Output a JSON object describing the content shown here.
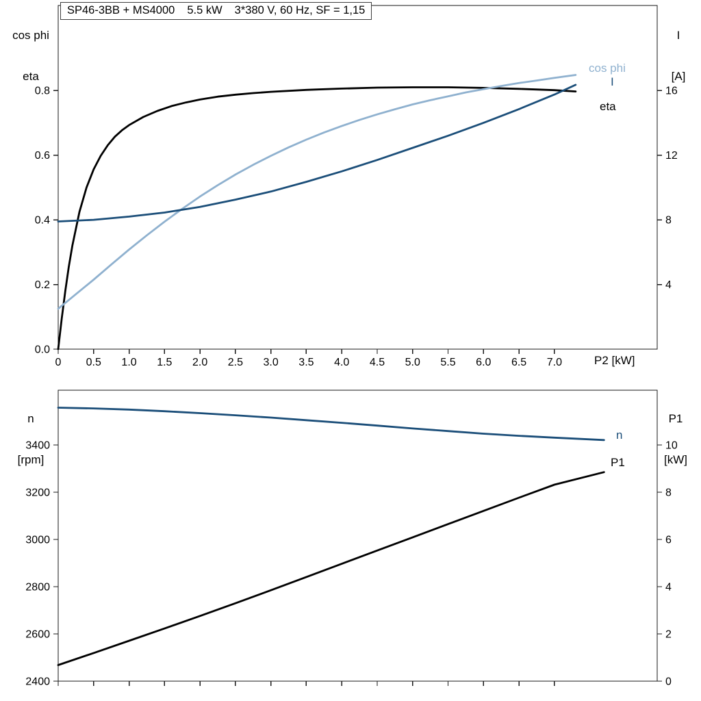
{
  "title": {
    "parts": [
      "SP46-3BB + MS4000",
      "5.5 kW",
      "3*380 V, 60 Hz, SF = 1,15"
    ]
  },
  "colors": {
    "black": "#000000",
    "dark_blue": "#1b4e79",
    "light_blue": "#8fb1cf",
    "frame": "#1a1a1a"
  },
  "chart_data": [
    {
      "type": "line",
      "grid": false,
      "x_axis": {
        "label": "P2 [kW]",
        "min": 0,
        "max": 8.45,
        "ticks": [
          0,
          0.5,
          1.0,
          1.5,
          2.0,
          2.5,
          3.0,
          3.5,
          4.0,
          4.5,
          5.0,
          5.5,
          6.0,
          6.5,
          7.0
        ],
        "tick_labels": [
          "0",
          "0.5",
          "1.0",
          "1.5",
          "2.0",
          "2.5",
          "3.0",
          "3.5",
          "4.0",
          "4.5",
          "5.0",
          "5.5",
          "6.0",
          "6.5",
          "7.0"
        ]
      },
      "left_axis": {
        "title_lines": [
          "cos phi",
          "eta"
        ],
        "min": 0,
        "max": 1.063,
        "ticks": [
          0.0,
          0.2,
          0.4,
          0.6,
          0.8
        ],
        "tick_labels": [
          "0.0",
          "0.2",
          "0.4",
          "0.6",
          "0.8"
        ]
      },
      "right_axis": {
        "title_lines": [
          "I",
          "[A]"
        ],
        "min": 0,
        "max": 21.26,
        "ticks": [
          4,
          8,
          12,
          16
        ],
        "tick_labels": [
          "4",
          "8",
          "12",
          "16"
        ]
      },
      "series": [
        {
          "name": "eta",
          "axis": "left",
          "color_key": "black",
          "points": [
            [
              0,
              0
            ],
            [
              0.05,
              0.095
            ],
            [
              0.1,
              0.18
            ],
            [
              0.15,
              0.255
            ],
            [
              0.2,
              0.32
            ],
            [
              0.3,
              0.425
            ],
            [
              0.4,
              0.5
            ],
            [
              0.5,
              0.556
            ],
            [
              0.6,
              0.598
            ],
            [
              0.7,
              0.631
            ],
            [
              0.8,
              0.657
            ],
            [
              0.9,
              0.677
            ],
            [
              1.0,
              0.693
            ],
            [
              1.2,
              0.718
            ],
            [
              1.4,
              0.737
            ],
            [
              1.6,
              0.752
            ],
            [
              1.8,
              0.763
            ],
            [
              2.0,
              0.772
            ],
            [
              2.25,
              0.781
            ],
            [
              2.5,
              0.787
            ],
            [
              2.75,
              0.792
            ],
            [
              3.0,
              0.796
            ],
            [
              3.5,
              0.802
            ],
            [
              4.0,
              0.806
            ],
            [
              4.5,
              0.809
            ],
            [
              5.0,
              0.81
            ],
            [
              5.5,
              0.81
            ],
            [
              6.0,
              0.808
            ],
            [
              6.5,
              0.805
            ],
            [
              7.0,
              0.801
            ],
            [
              7.3,
              0.797
            ]
          ]
        },
        {
          "name": "cos phi",
          "axis": "left",
          "color_key": "light_blue",
          "points": [
            [
              0,
              0.125
            ],
            [
              0.25,
              0.17
            ],
            [
              0.5,
              0.215
            ],
            [
              0.75,
              0.262
            ],
            [
              1.0,
              0.308
            ],
            [
              1.25,
              0.352
            ],
            [
              1.5,
              0.394
            ],
            [
              1.75,
              0.434
            ],
            [
              2.0,
              0.472
            ],
            [
              2.25,
              0.507
            ],
            [
              2.5,
              0.54
            ],
            [
              2.75,
              0.57
            ],
            [
              3.0,
              0.598
            ],
            [
              3.25,
              0.624
            ],
            [
              3.5,
              0.648
            ],
            [
              3.75,
              0.67
            ],
            [
              4.0,
              0.69
            ],
            [
              4.25,
              0.709
            ],
            [
              4.5,
              0.726
            ],
            [
              4.75,
              0.742
            ],
            [
              5.0,
              0.757
            ],
            [
              5.25,
              0.77
            ],
            [
              5.5,
              0.782
            ],
            [
              5.75,
              0.794
            ],
            [
              6.0,
              0.804
            ],
            [
              6.25,
              0.814
            ],
            [
              6.5,
              0.823
            ],
            [
              6.75,
              0.831
            ],
            [
              7.0,
              0.839
            ],
            [
              7.3,
              0.848
            ]
          ]
        },
        {
          "name": "I",
          "axis": "right",
          "color_key": "dark_blue",
          "points": [
            [
              0,
              7.9
            ],
            [
              0.5,
              8.0
            ],
            [
              1.0,
              8.2
            ],
            [
              1.5,
              8.45
            ],
            [
              2.0,
              8.8
            ],
            [
              2.5,
              9.25
            ],
            [
              3.0,
              9.75
            ],
            [
              3.5,
              10.35
            ],
            [
              4.0,
              11.0
            ],
            [
              4.5,
              11.7
            ],
            [
              5.0,
              12.45
            ],
            [
              5.5,
              13.2
            ],
            [
              6.0,
              14.0
            ],
            [
              6.5,
              14.85
            ],
            [
              7.0,
              15.75
            ],
            [
              7.3,
              16.35
            ]
          ]
        }
      ]
    },
    {
      "type": "line",
      "grid": false,
      "x_axis": {
        "label": "",
        "min": 0,
        "max": 8.45,
        "ticks": [
          0,
          0.5,
          1.0,
          1.5,
          2.0,
          2.5,
          3.0,
          3.5,
          4.0,
          4.5,
          5.0,
          5.5,
          6.0,
          6.5,
          7.0
        ],
        "tick_labels": []
      },
      "left_axis": {
        "title_lines": [
          "n",
          "[rpm]"
        ],
        "min": 2400,
        "max": 3632,
        "ticks": [
          2400,
          2600,
          2800,
          3000,
          3200,
          3400
        ],
        "tick_labels": [
          "2400",
          "2600",
          "2800",
          "3000",
          "3200",
          "3400"
        ]
      },
      "right_axis": {
        "title_lines": [
          "P1",
          "[kW]"
        ],
        "min": 0,
        "max": 12.32,
        "ticks": [
          0,
          2,
          4,
          6,
          8,
          10
        ],
        "tick_labels": [
          "0",
          "2",
          "4",
          "6",
          "8",
          "10"
        ]
      },
      "series": [
        {
          "name": "n",
          "axis": "left",
          "color_key": "dark_blue",
          "points": [
            [
              0,
              3558
            ],
            [
              0.5,
              3555
            ],
            [
              1.0,
              3550
            ],
            [
              1.5,
              3543
            ],
            [
              2.0,
              3535
            ],
            [
              2.5,
              3526
            ],
            [
              3.0,
              3516
            ],
            [
              3.5,
              3505
            ],
            [
              4.0,
              3494
            ],
            [
              4.5,
              3482
            ],
            [
              5.0,
              3470
            ],
            [
              5.5,
              3459
            ],
            [
              6.0,
              3448
            ],
            [
              6.5,
              3439
            ],
            [
              7.0,
              3431
            ],
            [
              7.7,
              3421
            ]
          ]
        },
        {
          "name": "P1",
          "axis": "right",
          "color_key": "black",
          "points": [
            [
              0,
              0.68
            ],
            [
              0.5,
              1.19
            ],
            [
              1.0,
              1.71
            ],
            [
              1.5,
              2.23
            ],
            [
              2.0,
              2.76
            ],
            [
              2.5,
              3.3
            ],
            [
              3.0,
              3.85
            ],
            [
              3.5,
              4.41
            ],
            [
              4.0,
              4.97
            ],
            [
              4.5,
              5.53
            ],
            [
              5.0,
              6.09
            ],
            [
              5.5,
              6.65
            ],
            [
              6.0,
              7.21
            ],
            [
              6.5,
              7.77
            ],
            [
              7.0,
              8.32
            ],
            [
              7.7,
              8.85
            ]
          ]
        }
      ]
    }
  ]
}
